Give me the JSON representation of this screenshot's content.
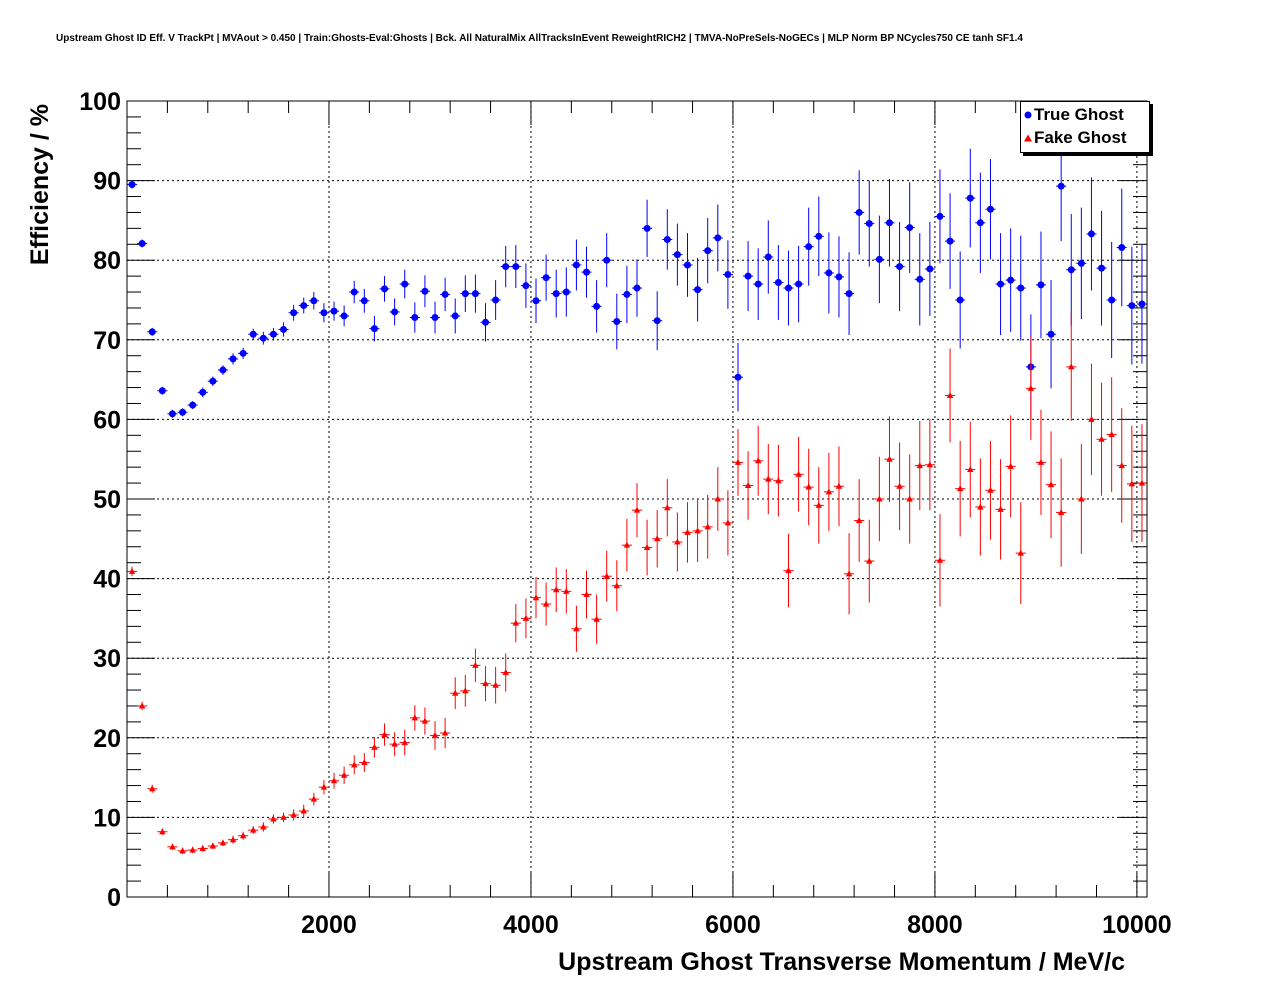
{
  "chart_data": {
    "type": "scatter",
    "title": "Upstream Ghost ID Eff. V TrackPt | MVAout > 0.450 | Train:Ghosts-Eval:Ghosts | Bck. All NaturalMix AllTracksInEvent ReweightRICH2 | TMVA-NoPreSels-NoGECs | MLP Norm BP NCycles750 CE tanh SF1.4",
    "xlabel": "Upstream Ghost Transverse Momentum / MeV/c",
    "ylabel": "Efficiency / %",
    "xlim": [
      0,
      10100
    ],
    "ylim": [
      0,
      100
    ],
    "xticks": [
      2000,
      4000,
      6000,
      8000,
      10000
    ],
    "yticks": [
      0,
      10,
      20,
      30,
      40,
      50,
      60,
      70,
      80,
      90,
      100
    ],
    "grid": true,
    "legend_position": "top-right",
    "bin_width": 100,
    "x": [
      50,
      150,
      250,
      350,
      450,
      550,
      650,
      750,
      850,
      950,
      1050,
      1150,
      1250,
      1350,
      1450,
      1550,
      1650,
      1750,
      1850,
      1950,
      2050,
      2150,
      2250,
      2350,
      2450,
      2550,
      2650,
      2750,
      2850,
      2950,
      3050,
      3150,
      3250,
      3350,
      3450,
      3550,
      3650,
      3750,
      3850,
      3950,
      4050,
      4150,
      4250,
      4350,
      4450,
      4550,
      4650,
      4750,
      4850,
      4950,
      5050,
      5150,
      5250,
      5350,
      5450,
      5550,
      5650,
      5750,
      5850,
      5950,
      6050,
      6150,
      6250,
      6350,
      6450,
      6550,
      6650,
      6750,
      6850,
      6950,
      7050,
      7150,
      7250,
      7350,
      7450,
      7550,
      7650,
      7750,
      7850,
      7950,
      8050,
      8150,
      8250,
      8350,
      8450,
      8550,
      8650,
      8750,
      8850,
      8950,
      9050,
      9150,
      9250,
      9350,
      9450,
      9550,
      9650,
      9750,
      9850,
      9950,
      10050
    ],
    "series": [
      {
        "name": "True Ghost",
        "color": "#0000ff",
        "marker": "circle",
        "y": [
          89.5,
          82.1,
          71.0,
          63.6,
          60.7,
          60.9,
          61.8,
          63.4,
          64.8,
          66.2,
          67.6,
          68.3,
          70.7,
          70.2,
          70.7,
          71.3,
          73.4,
          74.3,
          74.9,
          73.4,
          73.6,
          73.0,
          76.0,
          74.9,
          71.4,
          76.4,
          73.5,
          77.0,
          72.8,
          76.1,
          72.8,
          75.7,
          73.0,
          75.8,
          75.8,
          72.2,
          75.0,
          79.2,
          79.2,
          76.8,
          74.9,
          77.8,
          75.8,
          76.0,
          79.4,
          78.5,
          74.2,
          80.0,
          72.3,
          75.7,
          76.5,
          84.0,
          72.4,
          82.6,
          80.7,
          79.4,
          76.3,
          81.2,
          82.8,
          78.2,
          65.3,
          78.0,
          77.0,
          80.4,
          77.2,
          76.5,
          77.0,
          81.7,
          83.0,
          78.4,
          77.9,
          75.8,
          86.0,
          84.6,
          80.1,
          84.7,
          79.2,
          84.1,
          77.6,
          78.9,
          85.5,
          82.4,
          75.0,
          87.8,
          84.7,
          86.4,
          77.0,
          77.5,
          76.5,
          66.6,
          76.9,
          70.7,
          89.3,
          78.8,
          79.6,
          83.3,
          79.0,
          75.0,
          81.6,
          74.3,
          74.5
        ],
        "err": [
          0.5,
          0.5,
          0.5,
          0.5,
          0.5,
          0.5,
          0.5,
          0.6,
          0.6,
          0.6,
          0.7,
          0.7,
          0.7,
          0.8,
          0.8,
          0.9,
          1.0,
          1.0,
          1.1,
          1.2,
          1.2,
          1.3,
          1.4,
          1.5,
          1.6,
          1.6,
          1.7,
          1.8,
          1.9,
          2.0,
          2.0,
          2.1,
          2.2,
          2.3,
          2.4,
          2.4,
          2.5,
          2.6,
          2.7,
          2.8,
          2.8,
          2.9,
          3.0,
          3.1,
          3.2,
          3.2,
          3.3,
          3.4,
          3.5,
          3.6,
          3.6,
          3.6,
          3.7,
          3.8,
          3.9,
          4.0,
          4.0,
          4.1,
          4.2,
          4.3,
          4.3,
          4.4,
          4.5,
          4.6,
          4.7,
          4.7,
          4.8,
          4.9,
          5.0,
          5.1,
          5.1,
          5.2,
          5.3,
          5.4,
          5.5,
          5.5,
          5.6,
          5.7,
          5.8,
          5.9,
          5.9,
          6.0,
          6.1,
          6.2,
          6.3,
          6.3,
          6.4,
          6.5,
          6.6,
          6.6,
          6.7,
          6.8,
          6.9,
          7.0,
          7.0,
          7.1,
          7.2,
          7.3,
          7.4,
          7.4,
          7.5
        ]
      },
      {
        "name": "Fake Ghost",
        "color": "#ff0000",
        "marker": "triangle",
        "y": [
          40.9,
          24.0,
          13.6,
          8.2,
          6.3,
          5.8,
          5.9,
          6.1,
          6.4,
          6.8,
          7.2,
          7.7,
          8.4,
          8.8,
          9.8,
          10.0,
          10.3,
          10.8,
          12.3,
          13.8,
          14.6,
          15.3,
          16.6,
          16.9,
          18.8,
          20.4,
          19.2,
          19.4,
          22.5,
          22.1,
          20.3,
          20.6,
          25.6,
          25.9,
          29.1,
          26.8,
          26.6,
          28.2,
          34.4,
          35.0,
          37.6,
          36.8,
          38.6,
          38.4,
          33.7,
          38.0,
          34.9,
          40.3,
          39.1,
          44.2,
          48.6,
          43.9,
          45.0,
          48.9,
          44.6,
          45.8,
          46.0,
          46.5,
          50.0,
          47.0,
          54.6,
          51.7,
          54.8,
          52.5,
          52.3,
          41.0,
          53.1,
          51.5,
          49.2,
          50.9,
          51.6,
          40.6,
          47.3,
          42.2,
          50.0,
          55.0,
          51.6,
          50.0,
          54.2,
          54.3,
          42.3,
          63.0,
          51.3,
          53.7,
          49.0,
          51.1,
          48.7,
          54.1,
          43.2,
          63.9,
          54.6,
          51.8,
          48.3,
          66.6,
          50.0,
          60.0,
          57.5,
          58.1,
          54.2,
          51.9,
          52.0
        ],
        "err": [
          0.6,
          0.5,
          0.5,
          0.4,
          0.4,
          0.4,
          0.4,
          0.4,
          0.4,
          0.4,
          0.5,
          0.5,
          0.5,
          0.6,
          0.6,
          0.6,
          0.7,
          0.8,
          0.8,
          0.9,
          1.0,
          1.1,
          1.2,
          1.2,
          1.3,
          1.4,
          1.5,
          1.6,
          1.6,
          1.7,
          1.8,
          1.9,
          2.0,
          2.0,
          2.1,
          2.2,
          2.3,
          2.4,
          2.4,
          2.5,
          2.6,
          2.7,
          2.8,
          2.8,
          2.9,
          3.0,
          3.1,
          3.2,
          3.2,
          3.3,
          3.4,
          3.5,
          3.6,
          3.6,
          3.7,
          3.8,
          3.9,
          4.0,
          4.0,
          4.1,
          4.2,
          4.3,
          4.4,
          4.4,
          4.5,
          4.6,
          4.7,
          4.8,
          4.8,
          4.9,
          5.0,
          5.1,
          5.2,
          5.2,
          5.3,
          5.4,
          5.5,
          5.6,
          5.6,
          5.7,
          5.8,
          5.9,
          6.0,
          6.0,
          6.1,
          6.2,
          6.3,
          6.4,
          6.4,
          6.5,
          6.6,
          6.7,
          6.8,
          6.8,
          6.9,
          7.0,
          7.1,
          7.2,
          7.2,
          7.3,
          7.4
        ]
      }
    ]
  }
}
